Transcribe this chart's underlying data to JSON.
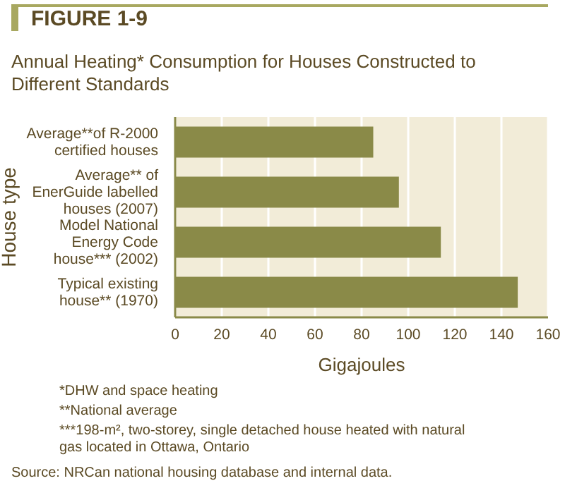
{
  "chart_data": {
    "type": "bar",
    "orientation": "horizontal",
    "title": "FIGURE 1-9",
    "subtitle": "Annual Heating* Consumption for Houses Constructed to Different Standards",
    "xlabel": "Gigajoules",
    "ylabel": "House type",
    "categories": [
      "Average**of R-2000 certified houses",
      "Average** of EnerGuide labelled houses (2007)",
      "Model National Energy Code house*** (2002)",
      "Typical existing house** (1970)"
    ],
    "values": [
      85,
      96,
      114,
      147
    ],
    "color": "#8a8a48",
    "xlim": [
      0,
      160
    ],
    "xticks": [
      0,
      20,
      40,
      60,
      80,
      100,
      120,
      140,
      160
    ],
    "grid": "x",
    "legend": false,
    "annotations": [
      "*DHW and space heating",
      "**National average",
      "***198-m², two-storey, single detached house heated with natural gas located in Ottawa, Ontario",
      "Source: NRCan national housing database and internal data."
    ]
  }
}
